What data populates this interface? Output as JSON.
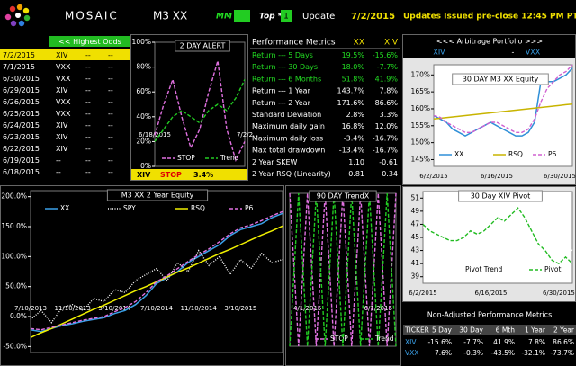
{
  "header": {
    "brand": "MOSAIC",
    "model": "M3 XX",
    "mm": "MM",
    "top": "Top *",
    "top_value": "1",
    "update": "Update",
    "date": "7/2/2015",
    "notice": "Updates Issued pre-close  12:45 PM PT"
  },
  "signals": {
    "heading": "<< Highest Odds",
    "rows": [
      [
        "7/2/2015",
        "XIV",
        "--",
        "--"
      ],
      [
        "7/1/2015",
        "VXX",
        "--",
        "--"
      ],
      [
        "6/30/2015",
        "VXX",
        "--",
        "--"
      ],
      [
        "6/29/2015",
        "XIV",
        "--",
        "--"
      ],
      [
        "6/26/2015",
        "VXX",
        "--",
        "--"
      ],
      [
        "6/25/2015",
        "VXX",
        "--",
        "--"
      ],
      [
        "6/24/2015",
        "XIV",
        "--",
        "--"
      ],
      [
        "6/23/2015",
        "XIV",
        "--",
        "--"
      ],
      [
        "6/22/2015",
        "XIV",
        "--",
        "--"
      ],
      [
        "6/19/2015",
        "--",
        "--",
        "--"
      ],
      [
        "6/18/2015",
        "--",
        "--",
        "--"
      ]
    ]
  },
  "alert": {
    "ticker": "XIV",
    "action": "STOP",
    "value": "3.4%"
  },
  "performance": {
    "columns": [
      "Performance Metrics",
      "XX",
      "XIV"
    ],
    "rows": [
      [
        "Return --- 5 Days",
        "19.5%",
        "-15.6%"
      ],
      [
        "Return --- 30 Days",
        "18.0%",
        "-7.7%"
      ],
      [
        "Return --- 6 Months",
        "51.8%",
        "41.9%"
      ],
      [
        "Return --- 1 Year",
        "143.7%",
        "7.8%"
      ],
      [
        "Return --- 2 Year",
        "171.6%",
        "86.6%"
      ],
      [
        "Standard Deviation",
        "2.8%",
        "3.3%"
      ],
      [
        "Maximum daily gain",
        "16.8%",
        "12.0%"
      ],
      [
        "Maximum daily loss",
        "-3.4%",
        "-16.7%"
      ],
      [
        "Max total drawdown",
        "-13.4%",
        "-16.7%"
      ],
      [
        "2 Year SKEW",
        "1.10",
        "-0.61"
      ],
      [
        "2 Year RSQ  (Linearity)",
        "0.81",
        "0.34"
      ]
    ]
  },
  "arbitrage": {
    "title": "<<<     Arbitrage Portfolio     >>>",
    "long": "XIV",
    "separator": "-",
    "short": "VXX"
  },
  "nonadjusted": {
    "title": "Non-Adjusted Performance Metrics",
    "columns": [
      "TICKER",
      "5 Day",
      "30 Day",
      "6 Mth",
      "1 Year",
      "2 Year"
    ],
    "rows": [
      [
        "XIV",
        "-15.6%",
        "-7.7%",
        "41.9%",
        "7.8%",
        "86.6%"
      ],
      [
        "VXX",
        "7.6%",
        "-0.3%",
        "-43.5%",
        "-32.1%",
        "-73.7%"
      ]
    ]
  },
  "chart_data": [
    {
      "type": "line",
      "title": "2 DAY ALERT",
      "categories": [
        "6/18/2015",
        null,
        null,
        null,
        null,
        null,
        null,
        null,
        null,
        null,
        "7/2/2"
      ],
      "ylim": [
        0,
        100
      ],
      "yticks": [
        {
          "value": 0,
          "label": "0%"
        },
        {
          "value": 20,
          "label": "20%"
        },
        {
          "value": 40,
          "label": "40%"
        },
        {
          "value": 60,
          "label": "60%"
        },
        {
          "value": 80,
          "label": "80%"
        },
        {
          "value": 100,
          "label": "100%"
        }
      ],
      "series": [
        {
          "name": "STOP",
          "color": "#e070e0",
          "style": "dashed",
          "values": [
            25,
            50,
            70,
            40,
            15,
            30,
            60,
            85,
            30,
            5,
            20
          ]
        },
        {
          "name": "Trend",
          "color": "#22cc22",
          "style": "dashed",
          "values": [
            20,
            30,
            40,
            45,
            40,
            35,
            45,
            50,
            45,
            55,
            70
          ]
        }
      ]
    },
    {
      "type": "line",
      "title": "30 DAY  M3 XX  Equity",
      "categories": [
        "6/2/2015",
        null,
        null,
        null,
        null,
        null,
        null,
        null,
        null,
        null,
        "6/16/2015",
        null,
        null,
        null,
        null,
        null,
        null,
        null,
        null,
        null,
        "6/30/2015",
        null,
        null
      ],
      "ylim": [
        143,
        173
      ],
      "yticks": [
        {
          "value": 145,
          "label": "145%"
        },
        {
          "value": 150,
          "label": "150%"
        },
        {
          "value": 155,
          "label": "155%"
        },
        {
          "value": 160,
          "label": "160%"
        },
        {
          "value": 165,
          "label": "165%"
        },
        {
          "value": 170,
          "label": "170%"
        }
      ],
      "series": [
        {
          "name": "XX",
          "color": "#2f8fd8",
          "style": "solid",
          "values": [
            158,
            157,
            156,
            154,
            153,
            152,
            153,
            154,
            155,
            156,
            155,
            154,
            153,
            152,
            152,
            153,
            156,
            168,
            168,
            168,
            169,
            170,
            172
          ]
        },
        {
          "name": "RSQ",
          "color": "#c8b400",
          "style": "solid",
          "values": [
            157,
            157.2,
            157.4,
            157.6,
            157.8,
            158,
            158.2,
            158.4,
            158.6,
            158.8,
            159,
            159.2,
            159.4,
            159.6,
            159.8,
            160,
            160.2,
            160.4,
            160.6,
            160.8,
            161,
            161.2,
            161.4
          ]
        },
        {
          "name": "P6",
          "color": "#d060d0",
          "style": "dashed",
          "values": [
            158,
            157.5,
            156,
            155,
            154,
            153,
            153,
            154,
            155,
            156,
            156,
            155,
            154,
            153,
            153,
            154,
            157,
            162,
            166,
            168,
            170,
            171,
            173
          ]
        }
      ]
    },
    {
      "type": "line",
      "title": "M3  XX  2 Year  Equity",
      "categories": [
        "7/10/2013",
        null,
        null,
        null,
        "11/10/2013",
        null,
        null,
        null,
        "3/10/2014",
        null,
        null,
        null,
        "7/10/2014",
        null,
        null,
        null,
        "11/10/2014",
        null,
        null,
        null,
        "3/10/2015",
        null,
        null,
        null,
        null
      ],
      "ylim": [
        -60,
        210
      ],
      "yticks": [
        {
          "value": -50,
          "label": "-50.0%"
        },
        {
          "value": 0,
          "label": "0.0%"
        },
        {
          "value": 50,
          "label": "50.0%"
        },
        {
          "value": 100,
          "label": "100.0%"
        },
        {
          "value": 150,
          "label": "150.0%"
        },
        {
          "value": 200,
          "label": "200.0%"
        }
      ],
      "series": [
        {
          "name": "XX",
          "color": "#3aa0e8",
          "style": "solid",
          "values": [
            -22,
            -25,
            -20,
            -15,
            -12,
            -8,
            -5,
            -2,
            5,
            10,
            20,
            35,
            55,
            65,
            75,
            90,
            100,
            110,
            120,
            135,
            145,
            150,
            155,
            165,
            172
          ]
        },
        {
          "name": "SPY",
          "color": "#ffffff",
          "style": "dotted",
          "values": [
            -5,
            10,
            -10,
            15,
            20,
            10,
            30,
            25,
            45,
            40,
            60,
            70,
            80,
            60,
            90,
            75,
            110,
            85,
            100,
            70,
            95,
            80,
            105,
            90,
            95
          ]
        },
        {
          "name": "RSQ",
          "color": "#f0f000",
          "style": "solid",
          "values": [
            -35,
            -27,
            -20,
            -12,
            -4,
            4,
            12,
            19,
            27,
            35,
            43,
            50,
            58,
            66,
            74,
            81,
            89,
            97,
            105,
            112,
            120,
            128,
            136,
            143,
            151
          ]
        },
        {
          "name": "P6",
          "color": "#e070e0",
          "style": "dashed",
          "values": [
            -20,
            -22,
            -18,
            -14,
            -10,
            -6,
            -3,
            0,
            8,
            15,
            25,
            40,
            58,
            68,
            80,
            92,
            103,
            113,
            125,
            138,
            148,
            153,
            160,
            168,
            175
          ]
        }
      ]
    },
    {
      "type": "line",
      "title": "90 DAY  TrendX",
      "categories": [
        null,
        null,
        "4/1/2015",
        null,
        null,
        null,
        null,
        null,
        null,
        null,
        "6/1/2015",
        null,
        null
      ],
      "ylim": [
        0,
        100
      ],
      "series": [
        {
          "name": "STOP",
          "color": "#e070e0",
          "style": "dashed",
          "values": [
            100,
            0,
            100,
            0,
            100,
            0,
            100,
            0,
            100,
            0,
            100,
            0,
            100
          ]
        },
        {
          "name": "Trend",
          "color": "#22cc22",
          "style": "dashed",
          "values": [
            0,
            100,
            0,
            100,
            0,
            100,
            0,
            100,
            0,
            100,
            0,
            100,
            0
          ]
        }
      ]
    },
    {
      "type": "line",
      "title": "30 Day  XIV  Pivot",
      "categories": [
        "6/2/2015",
        null,
        null,
        null,
        null,
        null,
        null,
        null,
        null,
        null,
        "6/16/2015",
        null,
        null,
        null,
        null,
        null,
        null,
        null,
        null,
        null,
        "6/30/2015",
        null,
        null
      ],
      "ylim": [
        38,
        52
      ],
      "yticks": [
        39,
        41,
        43,
        45,
        47,
        49,
        51
      ],
      "series": [
        {
          "name": "Pivot Trend",
          "color": "#ffffff",
          "style": "solid",
          "values": [
            46.5,
            46.5,
            46.3,
            46,
            45.8,
            45.5,
            45.3,
            45.5,
            46,
            46.5,
            47,
            47.5,
            48,
            48.5,
            49,
            48.5,
            47.5,
            46,
            45,
            44.5,
            44,
            43.5,
            43
          ]
        },
        {
          "name": "Pivot",
          "color": "#22bb22",
          "style": "dashed",
          "values": [
            47,
            46,
            45.5,
            45,
            44.5,
            44.5,
            45,
            46,
            45.5,
            46,
            47,
            48,
            47.5,
            48.5,
            49.5,
            48,
            46,
            44,
            43,
            41.5,
            41,
            42,
            41
          ]
        }
      ]
    }
  ]
}
